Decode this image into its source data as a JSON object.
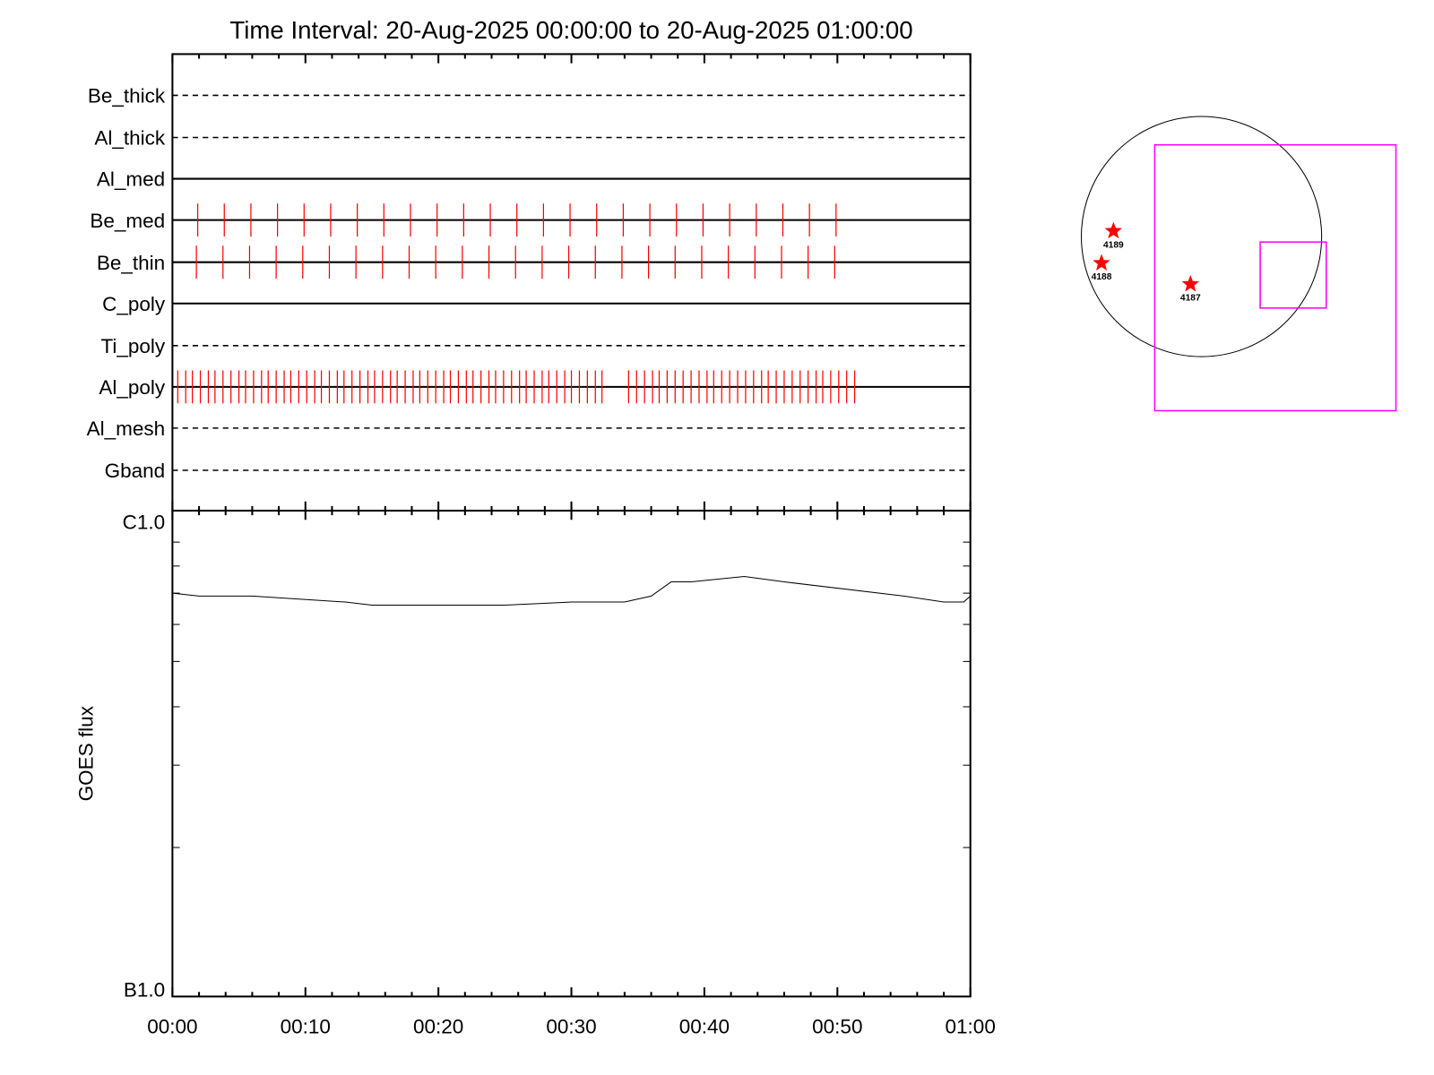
{
  "chart_data": [
    {
      "type": "timeline",
      "title": "Time Interval: 20-Aug-2025 00:00:00 to 20-Aug-2025 01:00:00",
      "x_range_minutes": [
        0,
        60
      ],
      "x_tick_labels": [
        "00:00",
        "00:10",
        "00:20",
        "00:30",
        "00:40",
        "00:50",
        "01:00"
      ],
      "tick_color": "#ff0000",
      "rows": [
        {
          "name": "Be_thick",
          "line": "dashed",
          "times": []
        },
        {
          "name": "Al_thick",
          "line": "dashed",
          "times": []
        },
        {
          "name": "Al_med",
          "line": "solid",
          "times": []
        },
        {
          "name": "Be_med",
          "line": "solid",
          "times": [
            1.9,
            3.9,
            5.9,
            7.9,
            9.9,
            11.9,
            13.9,
            15.9,
            17.9,
            19.9,
            21.9,
            23.9,
            25.9,
            27.9,
            29.9,
            31.9,
            33.9,
            35.9,
            37.9,
            39.9,
            41.9,
            43.9,
            45.9,
            47.9,
            49.9
          ]
        },
        {
          "name": "Be_thin",
          "line": "solid",
          "times": [
            1.8,
            3.8,
            5.8,
            7.8,
            9.8,
            11.8,
            13.8,
            15.8,
            17.8,
            19.8,
            21.8,
            23.8,
            25.8,
            27.8,
            29.8,
            31.8,
            33.8,
            35.8,
            37.8,
            39.8,
            41.8,
            43.8,
            45.8,
            47.8,
            49.8
          ]
        },
        {
          "name": "C_poly",
          "line": "solid",
          "times": []
        },
        {
          "name": "Ti_poly",
          "line": "dashed",
          "times": []
        },
        {
          "name": "Al_poly",
          "line": "solid",
          "times": [
            0.4,
            1.0,
            1.5,
            2.1,
            2.7,
            3.2,
            3.8,
            4.4,
            5.0,
            5.5,
            6.1,
            6.7,
            7.2,
            7.8,
            8.4,
            8.9,
            9.5,
            10.1,
            10.7,
            11.2,
            11.8,
            12.4,
            12.9,
            13.5,
            14.1,
            14.7,
            15.2,
            15.8,
            16.4,
            16.9,
            17.5,
            18.1,
            18.6,
            19.2,
            19.8,
            20.4,
            20.9,
            21.5,
            22.1,
            22.6,
            23.2,
            23.8,
            24.3,
            24.9,
            25.5,
            26.1,
            26.6,
            27.2,
            27.8,
            28.3,
            28.9,
            29.5,
            30.0,
            30.6,
            31.2,
            31.8,
            32.3,
            34.3,
            34.9,
            35.5,
            36.1,
            36.6,
            37.2,
            37.8,
            38.4,
            39.0,
            39.6,
            40.2,
            40.7,
            41.3,
            41.9,
            42.5,
            43.1,
            43.7,
            44.3,
            44.8,
            45.4,
            46.0,
            46.6,
            47.2,
            47.8,
            48.4,
            48.9,
            49.5,
            50.1,
            50.7,
            51.3
          ]
        },
        {
          "name": "Al_mesh",
          "line": "dashed",
          "times": []
        },
        {
          "name": "Gband",
          "line": "dashed",
          "times": []
        }
      ]
    },
    {
      "type": "line",
      "ylabel": "GOES flux",
      "y_scale": "log",
      "ylim": [
        1e-07,
        1e-06
      ],
      "y_tick_labels": [
        "B1.0",
        "C1.0"
      ],
      "x_range_minutes": [
        0,
        60
      ],
      "x_tick_labels": [
        "00:00",
        "00:10",
        "00:20",
        "00:30",
        "00:40",
        "00:50",
        "01:00"
      ],
      "x": [
        0,
        2,
        6,
        13,
        15,
        20,
        25,
        30,
        34,
        36,
        37.5,
        39,
        43,
        46,
        55,
        58,
        59.5,
        60
      ],
      "y": [
        7e-07,
        6.9e-07,
        6.9e-07,
        6.7e-07,
        6.6e-07,
        6.6e-07,
        6.6e-07,
        6.7e-07,
        6.7e-07,
        6.9e-07,
        7.4e-07,
        7.4e-07,
        7.6e-07,
        7.4e-07,
        6.9e-07,
        6.7e-07,
        6.7e-07,
        6.9e-07
      ]
    },
    {
      "type": "map",
      "disk_color": "#000000",
      "fov_color": "#ff00ff",
      "active_regions": [
        {
          "label": "4189",
          "marker": "star",
          "color": "#ff0000"
        },
        {
          "label": "4188",
          "marker": "star",
          "color": "#ff0000"
        },
        {
          "label": "4187",
          "marker": "star",
          "color": "#ff0000"
        }
      ]
    }
  ]
}
